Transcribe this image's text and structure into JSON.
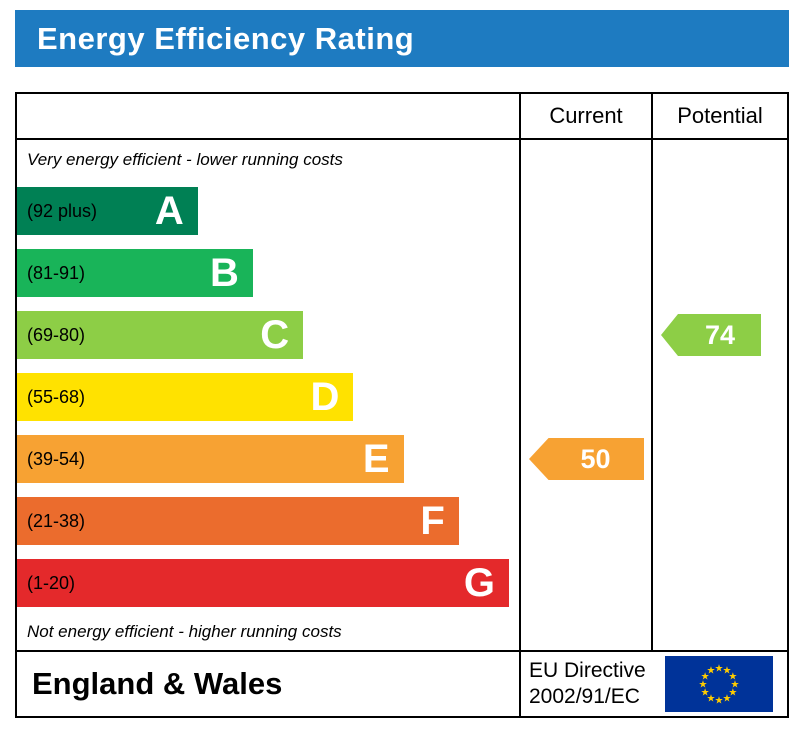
{
  "title": "Energy Efficiency Rating",
  "columns": {
    "current": "Current",
    "potential": "Potential"
  },
  "notes": {
    "top": "Very energy efficient - lower running costs",
    "bottom": "Not energy efficient - higher running costs"
  },
  "bands": [
    {
      "letter": "A",
      "range": "(92 plus)",
      "color": "#008054",
      "width": "36%"
    },
    {
      "letter": "B",
      "range": "(81-91)",
      "color": "#19b459",
      "width": "47%"
    },
    {
      "letter": "C",
      "range": "(69-80)",
      "color": "#8dce46",
      "width": "57%"
    },
    {
      "letter": "D",
      "range": "(55-68)",
      "color": "#ffe200",
      "width": "67%"
    },
    {
      "letter": "E",
      "range": "(39-54)",
      "color": "#f7a233",
      "width": "77%"
    },
    {
      "letter": "F",
      "range": "(21-38)",
      "color": "#eb6c2d",
      "width": "88%"
    },
    {
      "letter": "G",
      "range": "(1-20)",
      "color": "#e4292b",
      "width": "98%"
    }
  ],
  "markers": {
    "current": {
      "value": "50",
      "band": "E",
      "color": "#f7a233"
    },
    "potential": {
      "value": "74",
      "band": "C",
      "color": "#8dce46"
    }
  },
  "footer": {
    "region": "England & Wales",
    "directive_line1": "EU Directive",
    "directive_line2": "2002/91/EC"
  },
  "colors": {
    "banner_bg": "#1e7bc1",
    "banner_text": "#ffffff",
    "border": "#000000",
    "flag_bg": "#003399",
    "flag_stars": "#ffcc00"
  },
  "chart_data": {
    "type": "bar",
    "title": "Energy Efficiency Rating",
    "categories": [
      "A",
      "B",
      "C",
      "D",
      "E",
      "F",
      "G"
    ],
    "ranges": [
      "92 plus",
      "81-91",
      "69-80",
      "55-68",
      "39-54",
      "21-38",
      "1-20"
    ],
    "band_colors": [
      "#008054",
      "#19b459",
      "#8dce46",
      "#ffe200",
      "#f7a233",
      "#eb6c2d",
      "#e4292b"
    ],
    "series": [
      {
        "name": "Current",
        "value": 50,
        "band": "E"
      },
      {
        "name": "Potential",
        "value": 74,
        "band": "C"
      }
    ],
    "value_range": [
      1,
      100
    ],
    "notes": [
      "Very energy efficient - lower running costs",
      "Not energy efficient - higher running costs"
    ],
    "region": "England & Wales",
    "directive": "EU Directive 2002/91/EC"
  }
}
